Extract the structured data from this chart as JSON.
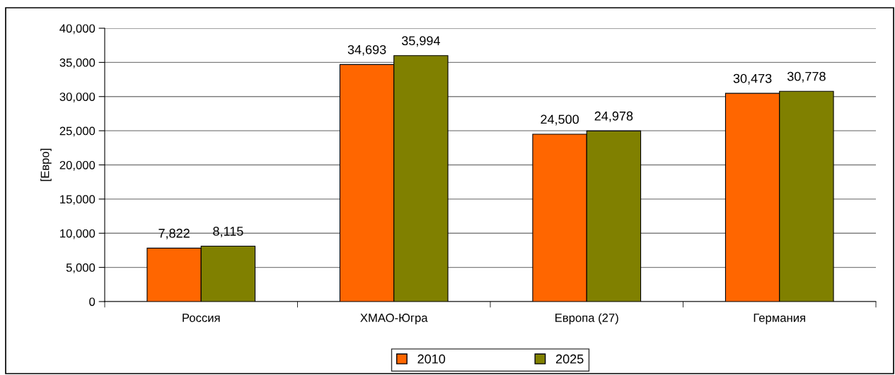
{
  "chart_data": {
    "type": "bar",
    "ylabel": "[Евро]",
    "categories": [
      "Россия",
      "ХМАО-Югра",
      "Европа (27)",
      "Германия"
    ],
    "series": [
      {
        "name": "2010",
        "color": "#ff6600",
        "values": [
          7822,
          34693,
          24500,
          30473
        ],
        "value_labels": [
          "7,822",
          "34,693",
          "24,500",
          "30,473"
        ]
      },
      {
        "name": "2025",
        "color": "#808000",
        "values": [
          8115,
          35994,
          24978,
          30778
        ],
        "value_labels": [
          "8,115",
          "35,994",
          "24,978",
          "30,778"
        ]
      }
    ],
    "ylim": [
      0,
      40000
    ],
    "yticks": [
      {
        "value": 0,
        "label": "0"
      },
      {
        "value": 5000,
        "label": "5,000"
      },
      {
        "value": 10000,
        "label": "10,000"
      },
      {
        "value": 15000,
        "label": "15,000"
      },
      {
        "value": 20000,
        "label": "20,000"
      },
      {
        "value": 25000,
        "label": "25,000"
      },
      {
        "value": 30000,
        "label": "30,000"
      },
      {
        "value": 35000,
        "label": "35,000"
      },
      {
        "value": 40000,
        "label": "40,000"
      }
    ],
    "grid": "y",
    "legend": "bottom"
  }
}
